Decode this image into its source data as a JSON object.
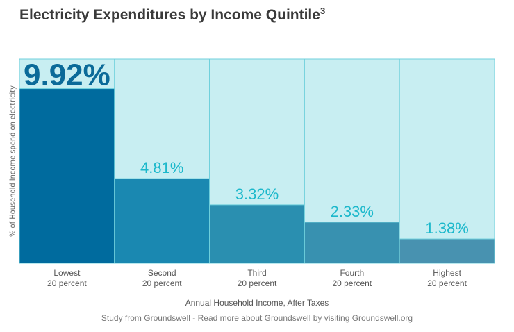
{
  "chart_data": {
    "type": "bar",
    "title": "Electricity Expenditures by Income Quintile",
    "title_superscript": "3",
    "ylabel": "% of Household Income spend on electricity",
    "xlabel": "Annual Household Income, After Taxes",
    "source": "Study from Groundswell - Read more about Groundswell by visiting Groundswell.org",
    "categories": [
      [
        "Lowest",
        "20 percent"
      ],
      [
        "Second",
        "20 percent"
      ],
      [
        "Third",
        "20 percent"
      ],
      [
        "Fourth",
        "20 percent"
      ],
      [
        "Highest",
        "20 percent"
      ]
    ],
    "values": [
      9.92,
      4.81,
      3.32,
      2.33,
      1.38
    ],
    "data_labels": [
      "9.92%",
      "4.81%",
      "3.32%",
      "2.33%",
      "1.38%"
    ],
    "ylim": [
      0,
      11.6
    ],
    "grid": false,
    "colors": {
      "bars": [
        "#006b9e",
        "#1a88b1",
        "#2a8fb0",
        "#3891b0",
        "#4892b0"
      ],
      "background": "#c8eef2",
      "border": "#6fd0dc",
      "label": "#1cb8cb",
      "label_highlight": "#0b6a99"
    }
  }
}
